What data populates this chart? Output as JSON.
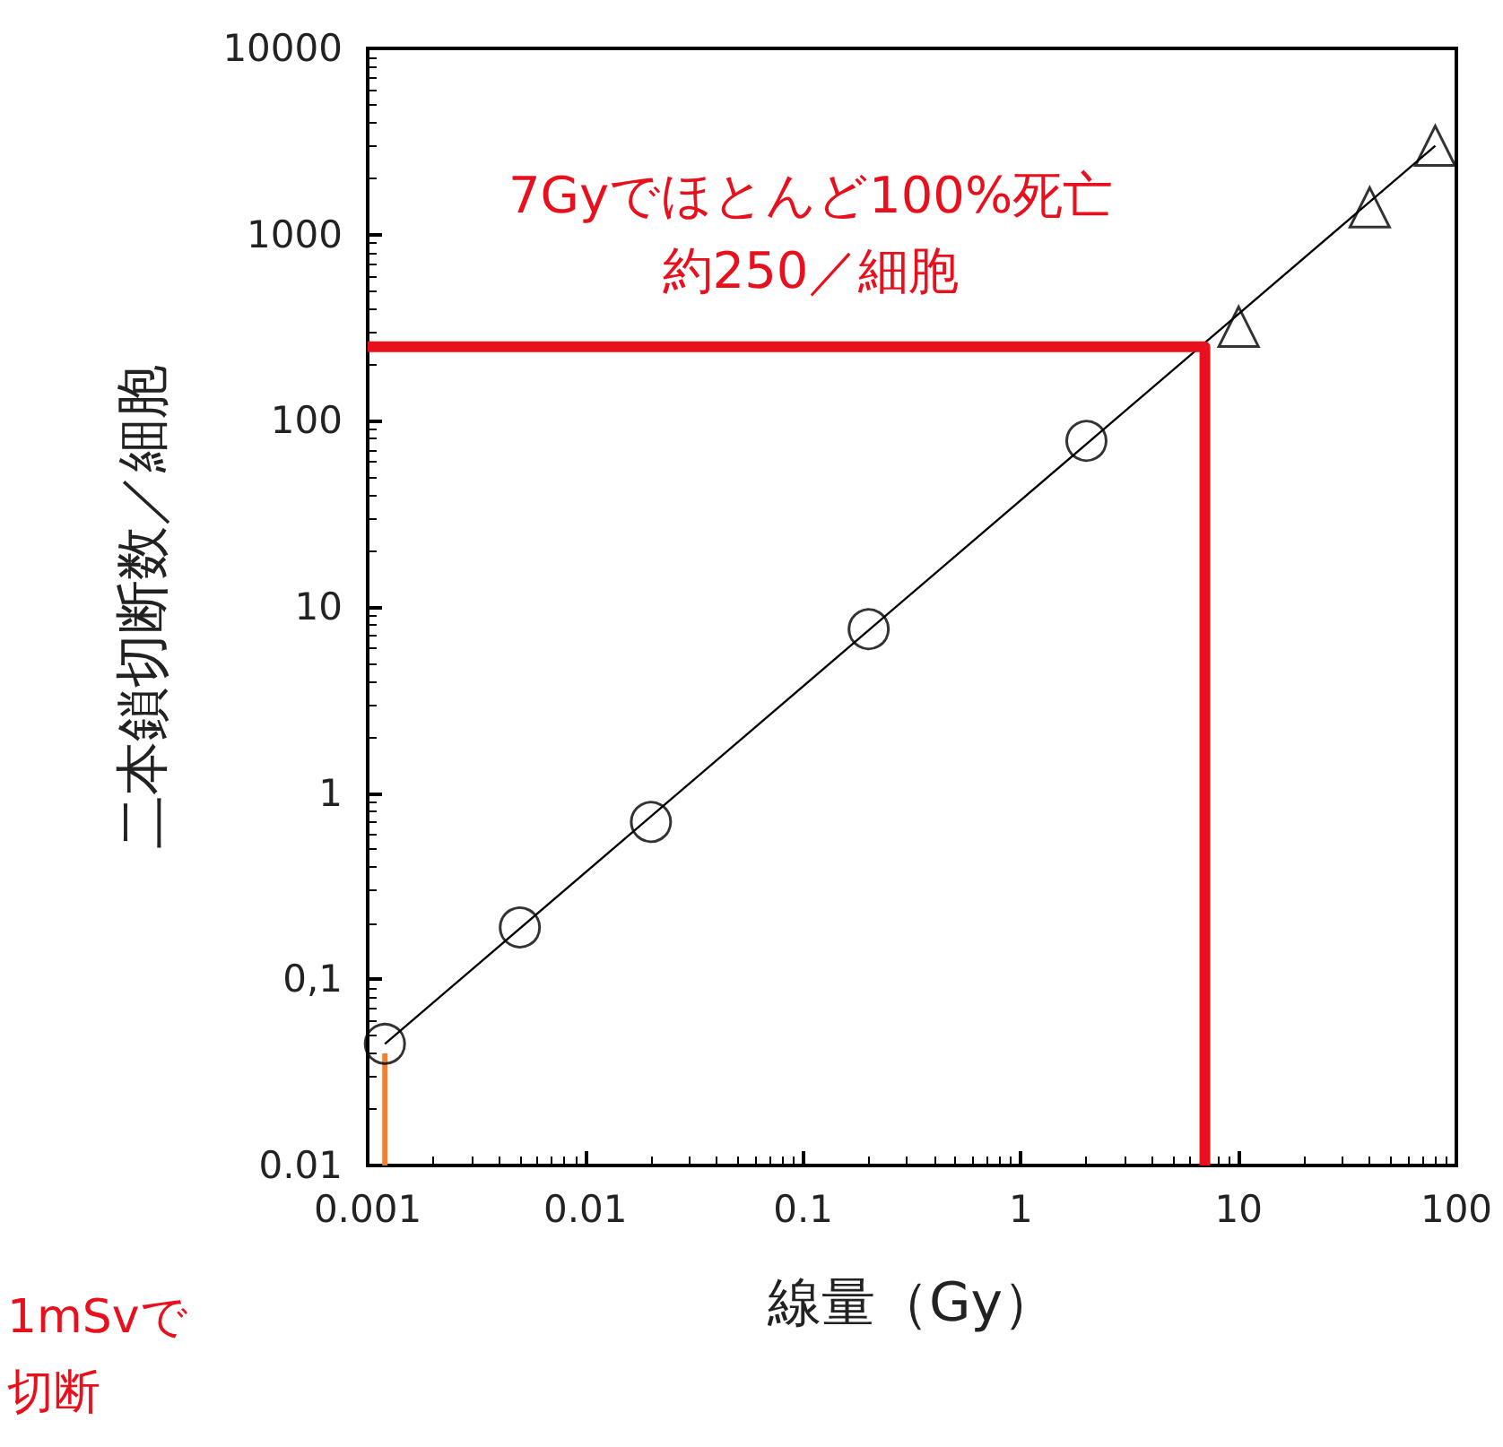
{
  "chart_data": {
    "type": "scatter",
    "xlabel": "線量（Gy）",
    "ylabel": "二本鎖切断数／細胞",
    "log": "xy",
    "xlim": [
      0.001,
      100
    ],
    "xticks": [
      0.001,
      0.01,
      0.1,
      1,
      10,
      100
    ],
    "ylim": [
      0.01,
      10000
    ],
    "yticks": [
      0.01,
      {
        "value": 0.1,
        "label": "0,1"
      },
      1,
      10,
      100,
      1000,
      10000
    ],
    "grid": false,
    "series": [
      {
        "type": "line",
        "color": "#000000",
        "marker": "none",
        "x": [
          0.0012,
          80
        ],
        "values": [
          0.045,
          3000
        ]
      },
      {
        "color": "#000000",
        "marker": "circle",
        "x": [
          0.0012,
          0.005,
          0.02,
          0.2,
          2
        ],
        "values": [
          0.045,
          0.19,
          0.7,
          7.6,
          78
        ]
      },
      {
        "color": "#000000",
        "marker": "triangle",
        "x": [
          10,
          40,
          80
        ],
        "values": [
          320,
          1400,
          3000
        ]
      },
      {
        "type": "line",
        "color": "#e8101c",
        "marker": "none",
        "x": [
          0.001,
          7,
          7
        ],
        "values": [
          250,
          250,
          0.01
        ]
      },
      {
        "type": "line",
        "color": "#f08030",
        "marker": "none",
        "x": [
          0.0012,
          0.0012
        ],
        "values": [
          0.01,
          0.04
        ]
      }
    ],
    "annotations": [
      "7Gyでほとんど100%死亡",
      "約250／細胞",
      "1mSvで",
      "切断"
    ]
  }
}
